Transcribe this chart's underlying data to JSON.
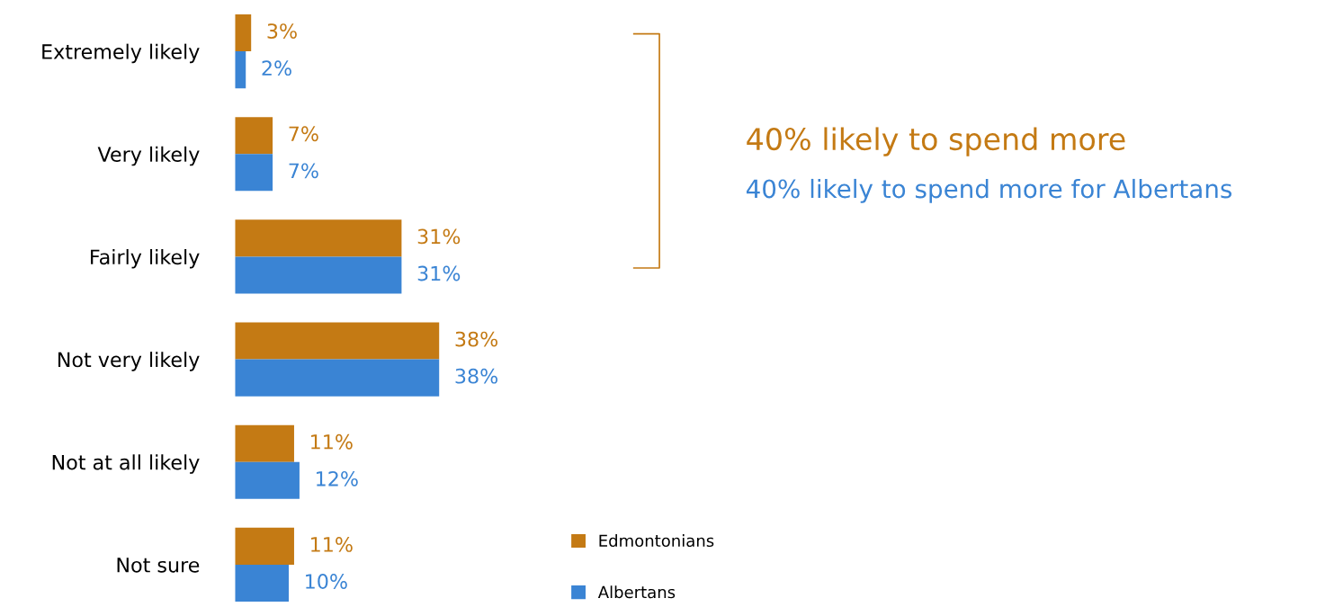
{
  "chart_data": {
    "type": "bar",
    "orientation": "horizontal",
    "categories": [
      "Extremely likely",
      "Very likely",
      "Fairly likely",
      "Not very likely",
      "Not at all likely",
      "Not sure"
    ],
    "series": [
      {
        "name": "Edmontonians",
        "color": "#c47a14",
        "values": [
          3,
          7,
          31,
          38,
          11,
          11
        ],
        "value_labels": [
          "3%",
          "7%",
          "31%",
          "38%",
          "11%",
          "11%"
        ]
      },
      {
        "name": "Albertans",
        "color": "#3a84d4",
        "values": [
          2,
          7,
          31,
          38,
          12,
          10
        ],
        "value_labels": [
          "2%",
          "7%",
          "31%",
          "38%",
          "12%",
          "10%"
        ]
      }
    ],
    "annotations": [
      "40% likely to spend more",
      "40% likely to spend more for Albertans"
    ],
    "legend": "bottom",
    "tick_labels": "y"
  }
}
